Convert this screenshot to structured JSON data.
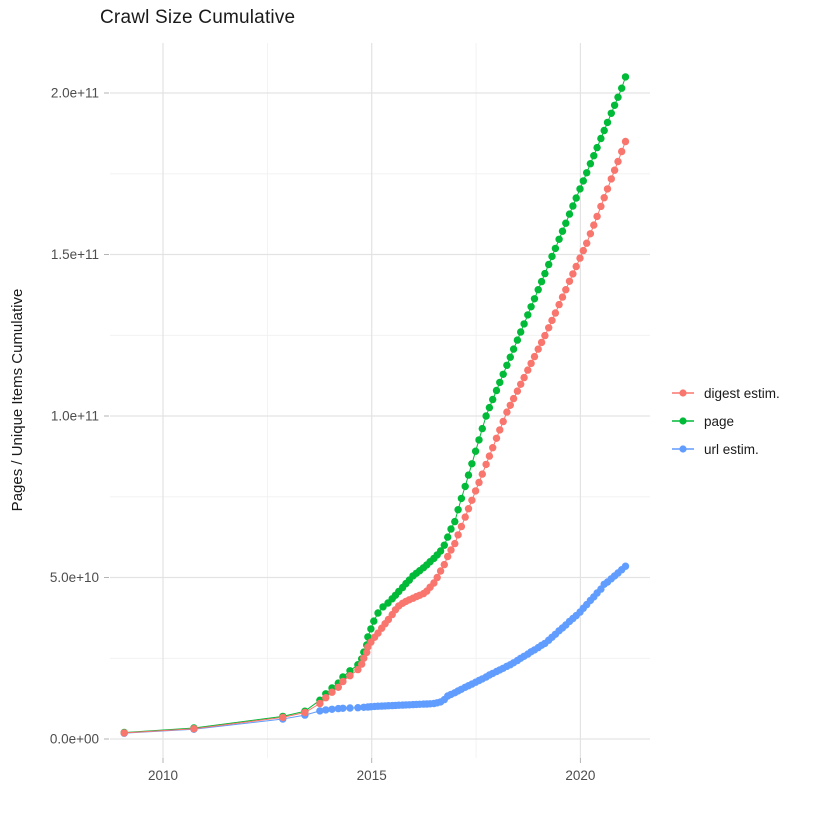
{
  "title": "Crawl Size Cumulative",
  "y_axis": {
    "label": "Pages / Unique Items Cumulative"
  },
  "legend": {
    "items": [
      {
        "label": "digest estim.",
        "color": "#F8766D"
      },
      {
        "label": "page",
        "color": "#00BA38"
      },
      {
        "label": "url estim.",
        "color": "#619CFF"
      }
    ]
  },
  "chart_data": {
    "type": "line",
    "title": "Crawl Size Cumulative",
    "xlabel": "",
    "ylabel": "Pages / Unique Items Cumulative",
    "xlim": [
      2008.7,
      2021.7
    ],
    "ylim_billions": [
      -10,
      215
    ],
    "x_ticks": [
      2010,
      2015,
      2020
    ],
    "x_tick_labels": [
      "2010",
      "2015",
      "2020"
    ],
    "x_minor_ticks": [
      2012.5,
      2017.5
    ],
    "y_ticks_billions": [
      0,
      50,
      100,
      150,
      200
    ],
    "y_tick_labels": [
      "0.0e+00",
      "5.0e+10",
      "1.0e+11",
      "1.5e+11",
      "2.0e+11"
    ],
    "y_minor_ticks_billions": [
      25,
      75,
      125,
      175
    ],
    "grid": "major+minor",
    "legend_position": "right",
    "value_unit": "pages (values in billions, 1e9)",
    "series": [
      {
        "name": "digest estim.",
        "color": "#F8766D",
        "z": 3,
        "points": [
          [
            2009.07,
            1.9
          ],
          [
            2010.74,
            3.2
          ],
          [
            2012.87,
            6.7
          ],
          [
            2013.4,
            8.2
          ],
          [
            2013.76,
            11.0
          ],
          [
            2013.9,
            12.8
          ],
          [
            2014.05,
            14.5
          ],
          [
            2014.2,
            16.0
          ],
          [
            2014.31,
            17.8
          ],
          [
            2014.48,
            19.6
          ],
          [
            2014.67,
            21.5
          ],
          [
            2014.76,
            23.2
          ],
          [
            2014.81,
            25.0
          ],
          [
            2014.88,
            26.8
          ],
          [
            2014.91,
            28.5
          ],
          [
            2014.98,
            30.0
          ],
          [
            2015.07,
            31.5
          ],
          [
            2015.15,
            32.8
          ],
          [
            2015.24,
            34.3
          ],
          [
            2015.32,
            35.7
          ],
          [
            2015.4,
            37.0
          ],
          [
            2015.49,
            38.5
          ],
          [
            2015.57,
            40.0
          ],
          [
            2015.65,
            41.2
          ],
          [
            2015.74,
            42.0
          ],
          [
            2015.82,
            42.6
          ],
          [
            2015.9,
            43.1
          ],
          [
            2015.99,
            43.6
          ],
          [
            2016.07,
            44.1
          ],
          [
            2016.15,
            44.5
          ],
          [
            2016.24,
            45.0
          ],
          [
            2016.32,
            45.8
          ],
          [
            2016.4,
            47.0
          ],
          [
            2016.49,
            48.3
          ],
          [
            2016.57,
            50.0
          ],
          [
            2016.65,
            52.0
          ],
          [
            2016.74,
            54.0
          ],
          [
            2016.82,
            56.5
          ],
          [
            2016.9,
            58.5
          ],
          [
            2016.99,
            60.5
          ],
          [
            2017.07,
            63.2
          ],
          [
            2017.15,
            65.8
          ],
          [
            2017.24,
            68.7
          ],
          [
            2017.32,
            71.3
          ],
          [
            2017.4,
            73.9
          ],
          [
            2017.49,
            76.8
          ],
          [
            2017.57,
            79.4
          ],
          [
            2017.65,
            82.0
          ],
          [
            2017.74,
            85.0
          ],
          [
            2017.82,
            87.6
          ],
          [
            2017.9,
            90.2
          ],
          [
            2017.99,
            93.1
          ],
          [
            2018.07,
            95.7
          ],
          [
            2018.15,
            98.3
          ],
          [
            2018.24,
            101.2
          ],
          [
            2018.32,
            103.3
          ],
          [
            2018.4,
            105.4
          ],
          [
            2018.49,
            107.7
          ],
          [
            2018.57,
            109.8
          ],
          [
            2018.65,
            111.9
          ],
          [
            2018.74,
            114.2
          ],
          [
            2018.82,
            116.3
          ],
          [
            2018.9,
            118.4
          ],
          [
            2018.99,
            120.7
          ],
          [
            2019.07,
            122.8
          ],
          [
            2019.15,
            124.9
          ],
          [
            2019.24,
            127.3
          ],
          [
            2019.32,
            129.6
          ],
          [
            2019.4,
            131.9
          ],
          [
            2019.49,
            134.5
          ],
          [
            2019.57,
            136.8
          ],
          [
            2019.65,
            139.1
          ],
          [
            2019.74,
            141.7
          ],
          [
            2019.82,
            144.0
          ],
          [
            2019.9,
            146.3
          ],
          [
            2019.99,
            148.9
          ],
          [
            2020.07,
            151.2
          ],
          [
            2020.15,
            153.5
          ],
          [
            2020.24,
            156.4
          ],
          [
            2020.32,
            159.1
          ],
          [
            2020.4,
            161.8
          ],
          [
            2020.49,
            164.9
          ],
          [
            2020.57,
            167.6
          ],
          [
            2020.65,
            170.3
          ],
          [
            2020.74,
            173.4
          ],
          [
            2020.82,
            176.1
          ],
          [
            2020.9,
            178.8
          ],
          [
            2020.99,
            181.9
          ],
          [
            2021.08,
            185.0
          ]
        ]
      },
      {
        "name": "page",
        "color": "#00BA38",
        "z": 2,
        "points": [
          [
            2009.07,
            2.0
          ],
          [
            2010.74,
            3.4
          ],
          [
            2012.87,
            7.0
          ],
          [
            2013.4,
            8.6
          ],
          [
            2013.76,
            12.0
          ],
          [
            2013.9,
            14.0
          ],
          [
            2014.05,
            15.8
          ],
          [
            2014.2,
            17.3
          ],
          [
            2014.31,
            19.2
          ],
          [
            2014.48,
            21.1
          ],
          [
            2014.67,
            23.0
          ],
          [
            2014.76,
            24.8
          ],
          [
            2014.81,
            26.9
          ],
          [
            2014.88,
            29.1
          ],
          [
            2014.91,
            31.6
          ],
          [
            2014.98,
            34.1
          ],
          [
            2015.05,
            36.5
          ],
          [
            2015.15,
            39.0
          ],
          [
            2015.27,
            40.9
          ],
          [
            2015.39,
            42.1
          ],
          [
            2015.49,
            43.4
          ],
          [
            2015.57,
            44.5
          ],
          [
            2015.65,
            45.7
          ],
          [
            2015.74,
            46.9
          ],
          [
            2015.82,
            48.1
          ],
          [
            2015.9,
            49.2
          ],
          [
            2015.99,
            50.5
          ],
          [
            2016.07,
            51.3
          ],
          [
            2016.15,
            52.1
          ],
          [
            2016.24,
            53.0
          ],
          [
            2016.32,
            53.9
          ],
          [
            2016.4,
            54.9
          ],
          [
            2016.49,
            55.9
          ],
          [
            2016.57,
            57.0
          ],
          [
            2016.65,
            58.2
          ],
          [
            2016.74,
            60.0
          ],
          [
            2016.82,
            62.5
          ],
          [
            2016.9,
            65.0
          ],
          [
            2016.99,
            67.3
          ],
          [
            2017.07,
            71.0
          ],
          [
            2017.15,
            74.5
          ],
          [
            2017.24,
            78.2
          ],
          [
            2017.32,
            81.7
          ],
          [
            2017.4,
            85.2
          ],
          [
            2017.49,
            89.1
          ],
          [
            2017.57,
            92.6
          ],
          [
            2017.65,
            96.1
          ],
          [
            2017.74,
            100.0
          ],
          [
            2017.82,
            102.6
          ],
          [
            2017.9,
            105.1
          ],
          [
            2017.99,
            107.9
          ],
          [
            2018.07,
            110.4
          ],
          [
            2018.15,
            112.9
          ],
          [
            2018.24,
            115.7
          ],
          [
            2018.32,
            118.2
          ],
          [
            2018.4,
            120.7
          ],
          [
            2018.49,
            123.5
          ],
          [
            2018.57,
            126.0
          ],
          [
            2018.65,
            128.5
          ],
          [
            2018.74,
            131.3
          ],
          [
            2018.82,
            133.8
          ],
          [
            2018.9,
            136.3
          ],
          [
            2018.99,
            139.1
          ],
          [
            2019.07,
            141.6
          ],
          [
            2019.15,
            144.1
          ],
          [
            2019.24,
            146.9
          ],
          [
            2019.32,
            149.4
          ],
          [
            2019.4,
            151.9
          ],
          [
            2019.49,
            154.7
          ],
          [
            2019.57,
            157.2
          ],
          [
            2019.65,
            159.7
          ],
          [
            2019.74,
            162.5
          ],
          [
            2019.82,
            165.0
          ],
          [
            2019.9,
            167.5
          ],
          [
            2019.99,
            170.3
          ],
          [
            2020.07,
            172.8
          ],
          [
            2020.15,
            175.3
          ],
          [
            2020.24,
            178.1
          ],
          [
            2020.32,
            180.6
          ],
          [
            2020.4,
            183.1
          ],
          [
            2020.49,
            185.9
          ],
          [
            2020.57,
            188.4
          ],
          [
            2020.65,
            190.9
          ],
          [
            2020.74,
            193.7
          ],
          [
            2020.82,
            196.2
          ],
          [
            2020.9,
            198.7
          ],
          [
            2020.99,
            201.5
          ],
          [
            2021.08,
            205.0
          ]
        ]
      },
      {
        "name": "url estim.",
        "color": "#619CFF",
        "z": 1,
        "points": [
          [
            2009.07,
            1.8
          ],
          [
            2010.74,
            3.0
          ],
          [
            2012.87,
            6.2
          ],
          [
            2013.4,
            7.4
          ],
          [
            2013.76,
            8.7
          ],
          [
            2013.9,
            9.0
          ],
          [
            2014.05,
            9.2
          ],
          [
            2014.2,
            9.4
          ],
          [
            2014.31,
            9.5
          ],
          [
            2014.48,
            9.6
          ],
          [
            2014.67,
            9.7
          ],
          [
            2014.81,
            9.8
          ],
          [
            2014.91,
            9.9
          ],
          [
            2014.98,
            10.0
          ],
          [
            2015.07,
            10.1
          ],
          [
            2015.15,
            10.15
          ],
          [
            2015.24,
            10.2
          ],
          [
            2015.32,
            10.25
          ],
          [
            2015.4,
            10.3
          ],
          [
            2015.49,
            10.35
          ],
          [
            2015.57,
            10.4
          ],
          [
            2015.65,
            10.45
          ],
          [
            2015.74,
            10.5
          ],
          [
            2015.82,
            10.55
          ],
          [
            2015.9,
            10.6
          ],
          [
            2015.99,
            10.65
          ],
          [
            2016.07,
            10.7
          ],
          [
            2016.15,
            10.75
          ],
          [
            2016.24,
            10.8
          ],
          [
            2016.32,
            10.85
          ],
          [
            2016.4,
            10.9
          ],
          [
            2016.49,
            11.0
          ],
          [
            2016.57,
            11.2
          ],
          [
            2016.65,
            11.5
          ],
          [
            2016.74,
            12.2
          ],
          [
            2016.82,
            13.3
          ],
          [
            2016.9,
            13.8
          ],
          [
            2016.99,
            14.3
          ],
          [
            2017.07,
            14.9
          ],
          [
            2017.15,
            15.4
          ],
          [
            2017.24,
            16.0
          ],
          [
            2017.32,
            16.5
          ],
          [
            2017.4,
            17.0
          ],
          [
            2017.49,
            17.6
          ],
          [
            2017.57,
            18.1
          ],
          [
            2017.65,
            18.6
          ],
          [
            2017.74,
            19.2
          ],
          [
            2017.82,
            19.8
          ],
          [
            2017.9,
            20.3
          ],
          [
            2017.99,
            20.9
          ],
          [
            2018.07,
            21.4
          ],
          [
            2018.15,
            21.9
          ],
          [
            2018.24,
            22.5
          ],
          [
            2018.32,
            23.0
          ],
          [
            2018.4,
            23.6
          ],
          [
            2018.49,
            24.3
          ],
          [
            2018.57,
            25.0
          ],
          [
            2018.65,
            25.6
          ],
          [
            2018.74,
            26.3
          ],
          [
            2018.82,
            27.0
          ],
          [
            2018.9,
            27.6
          ],
          [
            2018.99,
            28.3
          ],
          [
            2019.07,
            29.0
          ],
          [
            2019.15,
            29.6
          ],
          [
            2019.24,
            30.6
          ],
          [
            2019.32,
            31.5
          ],
          [
            2019.4,
            32.4
          ],
          [
            2019.49,
            33.5
          ],
          [
            2019.57,
            34.4
          ],
          [
            2019.65,
            35.3
          ],
          [
            2019.74,
            36.4
          ],
          [
            2019.82,
            37.3
          ],
          [
            2019.9,
            38.2
          ],
          [
            2019.99,
            39.3
          ],
          [
            2020.07,
            40.5
          ],
          [
            2020.15,
            41.6
          ],
          [
            2020.24,
            42.9
          ],
          [
            2020.32,
            44.0
          ],
          [
            2020.4,
            45.2
          ],
          [
            2020.49,
            46.4
          ],
          [
            2020.57,
            47.9
          ],
          [
            2020.65,
            48.6
          ],
          [
            2020.74,
            49.6
          ],
          [
            2020.82,
            50.5
          ],
          [
            2020.9,
            51.4
          ],
          [
            2020.99,
            52.4
          ],
          [
            2021.08,
            53.5
          ]
        ]
      }
    ],
    "style": {
      "grid_major_color": "#e3e3e3",
      "grid_minor_color": "#f0f0f0",
      "tick_color": "#b3b3b3",
      "tick_label_color": "#4d4d4d",
      "point_radius": 3.7
    }
  }
}
